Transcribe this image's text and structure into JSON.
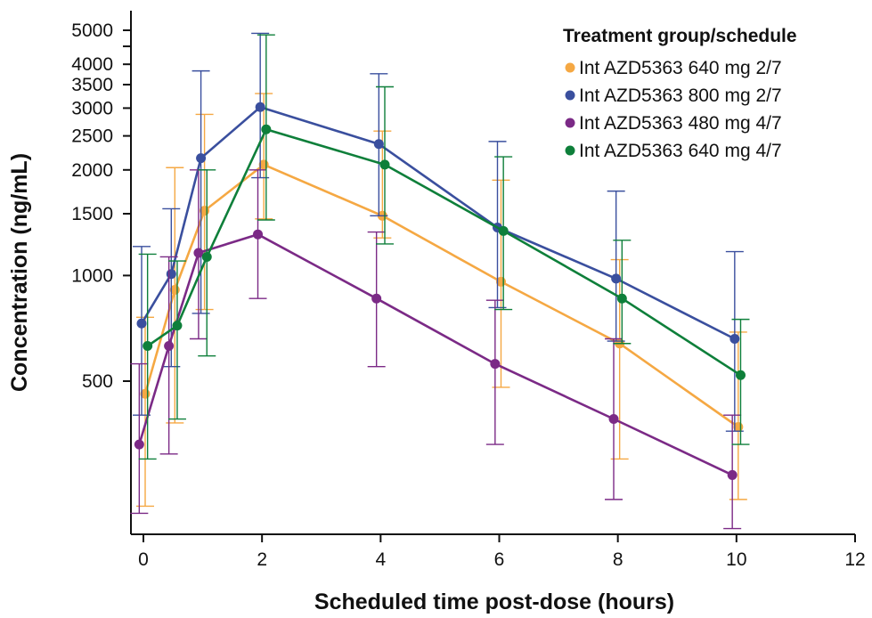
{
  "chart_data": {
    "type": "line",
    "title": "",
    "xlabel": "Scheduled time post-dose (hours)",
    "ylabel": "Concentration (ng/mL)",
    "xlim": [
      0,
      12
    ],
    "ylim": [
      180,
      6000
    ],
    "y_scale": "log",
    "x_ticks": [
      0,
      2,
      4,
      6,
      8,
      10,
      12
    ],
    "y_ticks": [
      500,
      1000,
      1500,
      2000,
      2500,
      3000,
      3500,
      4000,
      5000
    ],
    "y_minor_ticks": [
      4500
    ],
    "grid": false,
    "legend": {
      "title": "Treatment group/schedule",
      "placement": "top-right"
    },
    "series": [
      {
        "name": "Int AZD5363 640 mg 2/7",
        "color": "#F5A843",
        "x": [
          0,
          0.5,
          1,
          2,
          4,
          6,
          8,
          10
        ],
        "y": [
          460,
          910,
          1530,
          2070,
          1480,
          960,
          640,
          370
        ],
        "err_low": [
          220,
          380,
          800,
          1450,
          1280,
          480,
          300,
          230
        ],
        "err_high": [
          760,
          2030,
          2880,
          3300,
          2580,
          1870,
          1110,
          690
        ]
      },
      {
        "name": "Int AZD5363 800 mg 2/7",
        "color": "#3A4F9E",
        "x": [
          0,
          0.5,
          1,
          2,
          4,
          6,
          8,
          10
        ],
        "y": [
          730,
          1010,
          2160,
          3020,
          2370,
          1370,
          980,
          660
        ],
        "err_low": [
          400,
          550,
          780,
          1900,
          1480,
          810,
          650,
          360
        ],
        "err_high": [
          1210,
          1550,
          3830,
          4900,
          3760,
          2410,
          1740,
          1170
        ]
      },
      {
        "name": "Int AZD5363 480 mg 4/7",
        "color": "#7B2A86",
        "x": [
          0,
          0.5,
          1,
          2,
          4,
          6,
          8,
          10
        ],
        "y": [
          330,
          630,
          1160,
          1310,
          860,
          560,
          390,
          270
        ],
        "err_low": [
          210,
          310,
          660,
          860,
          550,
          330,
          230,
          190
        ],
        "err_high": [
          560,
          1130,
          2000,
          2000,
          1330,
          850,
          660,
          400
        ]
      },
      {
        "name": "Int AZD5363 640 mg 4/7",
        "color": "#0E7F3A",
        "x": [
          0,
          0.5,
          1,
          2,
          4,
          6,
          8,
          10
        ],
        "y": [
          630,
          720,
          1130,
          2610,
          2070,
          1340,
          860,
          520
        ],
        "err_low": [
          300,
          390,
          590,
          1440,
          1230,
          800,
          640,
          330
        ],
        "err_high": [
          1150,
          1100,
          2000,
          4850,
          3450,
          2180,
          1260,
          750
        ]
      }
    ]
  }
}
